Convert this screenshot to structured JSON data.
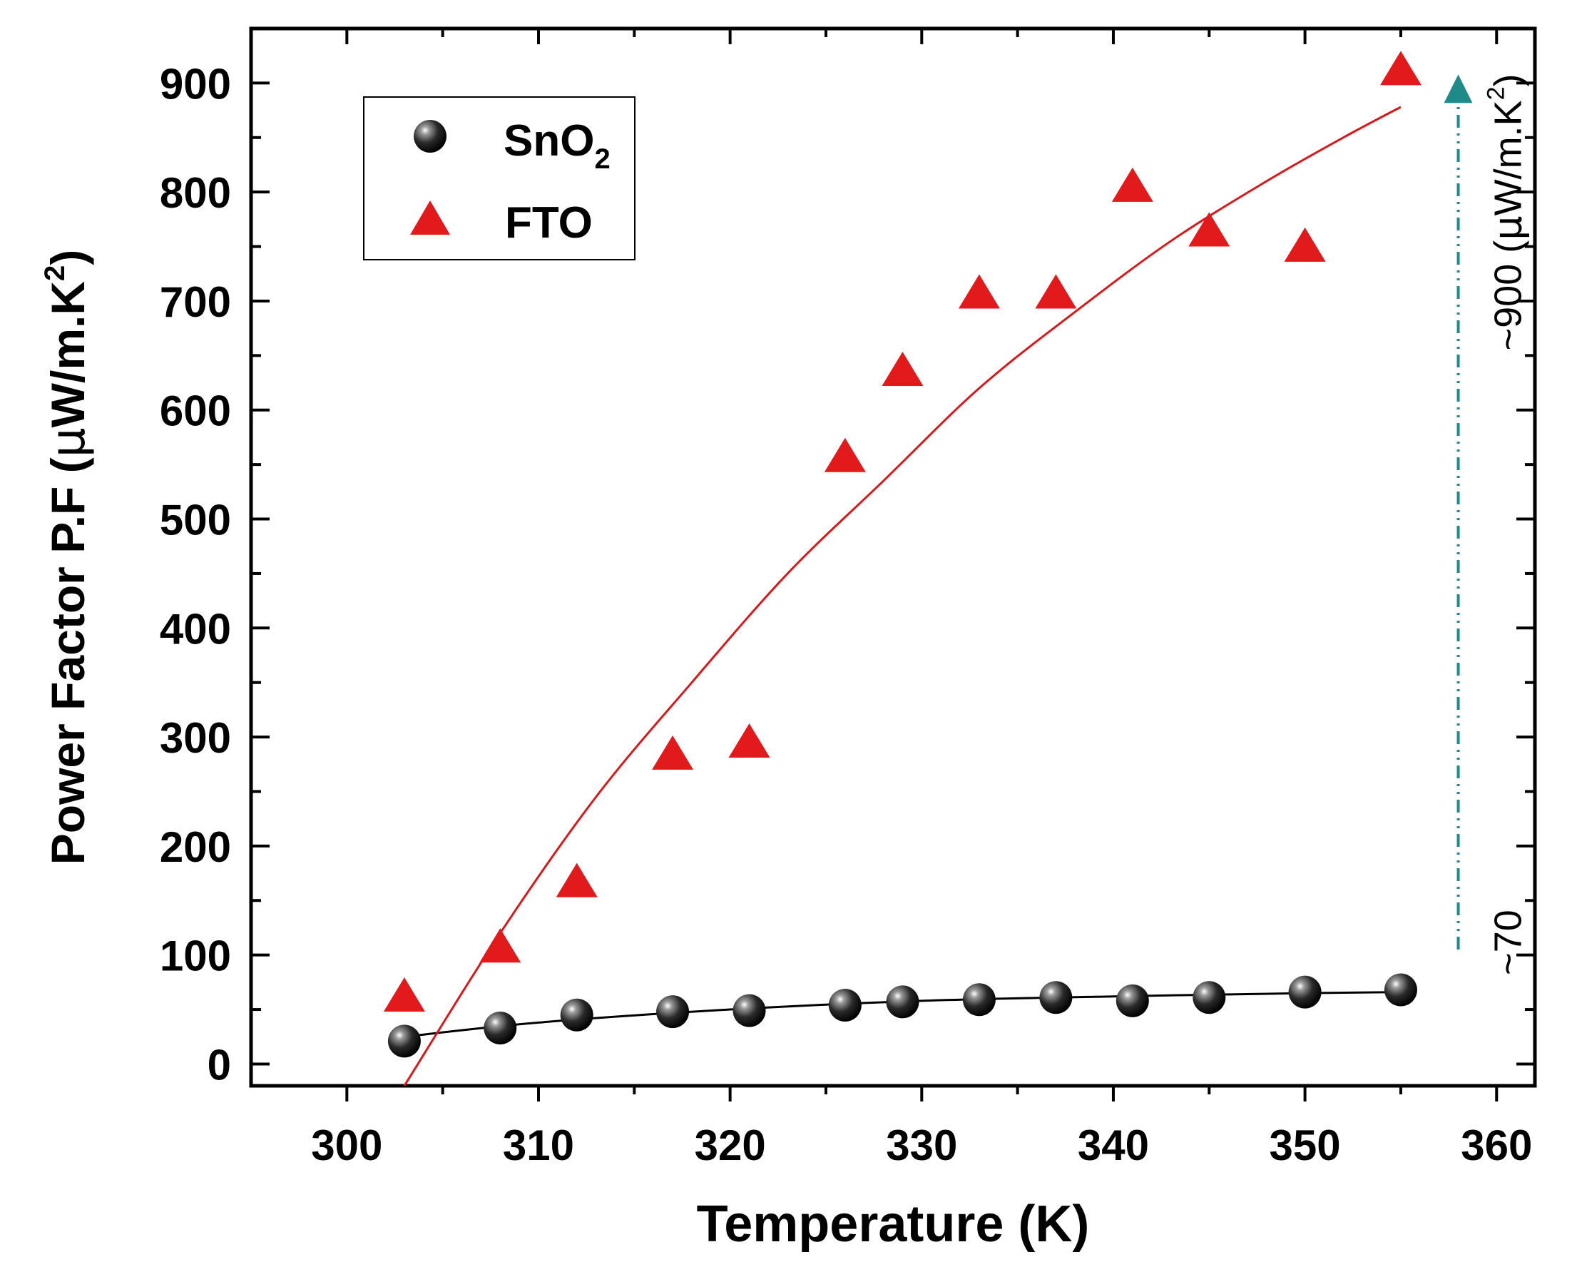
{
  "chart_data": {
    "type": "scatter",
    "title": "",
    "xlabel": "Temperature (K)",
    "ylabel": {
      "main": "Power Factor P.F (",
      "mu": "μ",
      "unit": "W/m.K",
      "sup": "2",
      "close": ")"
    },
    "xlim": [
      295,
      362
    ],
    "ylim": [
      -20,
      950
    ],
    "xticks": [
      300,
      310,
      320,
      330,
      340,
      350,
      360
    ],
    "yticks": [
      0,
      100,
      200,
      300,
      400,
      500,
      600,
      700,
      800,
      900
    ],
    "series": [
      {
        "name": "SnO",
        "name_sub": "2",
        "marker": "sphere",
        "color": "#000000",
        "x": [
          303,
          308,
          312,
          317,
          321,
          326,
          329,
          333,
          337,
          341,
          345,
          350,
          355
        ],
        "y": [
          21,
          33,
          45,
          48,
          49,
          54,
          57,
          59,
          61,
          58,
          61,
          66,
          68
        ],
        "fit": [
          [
            303,
            25
          ],
          [
            310,
            38
          ],
          [
            320,
            50
          ],
          [
            330,
            58
          ],
          [
            340,
            62
          ],
          [
            350,
            65
          ],
          [
            355,
            66
          ]
        ]
      },
      {
        "name": "FTO",
        "marker": "triangle",
        "color": "#e31a1c",
        "x": [
          303,
          308,
          312,
          317,
          321,
          326,
          329,
          333,
          337,
          341,
          345,
          350,
          355
        ],
        "y": [
          60,
          105,
          165,
          282,
          293,
          555,
          634,
          705,
          705,
          803,
          762,
          748,
          910
        ],
        "fit": [
          [
            303,
            -20
          ],
          [
            308,
            120
          ],
          [
            313,
            245
          ],
          [
            318,
            350
          ],
          [
            323,
            450
          ],
          [
            328,
            535
          ],
          [
            333,
            620
          ],
          [
            338,
            690
          ],
          [
            343,
            755
          ],
          [
            348,
            810
          ],
          [
            352,
            850
          ],
          [
            355,
            878
          ]
        ]
      }
    ],
    "annotation": {
      "top_label": "~900 (",
      "top_mu": "μ",
      "top_unit": "W/m.K",
      "top_sup": "2",
      "top_close": ")",
      "bottom_label": "~70",
      "arrow_color": "#1f8a8a",
      "arrow_x": 358,
      "arrow_y_from": 105,
      "arrow_y_to": 900
    },
    "legend_position": "top-left"
  }
}
